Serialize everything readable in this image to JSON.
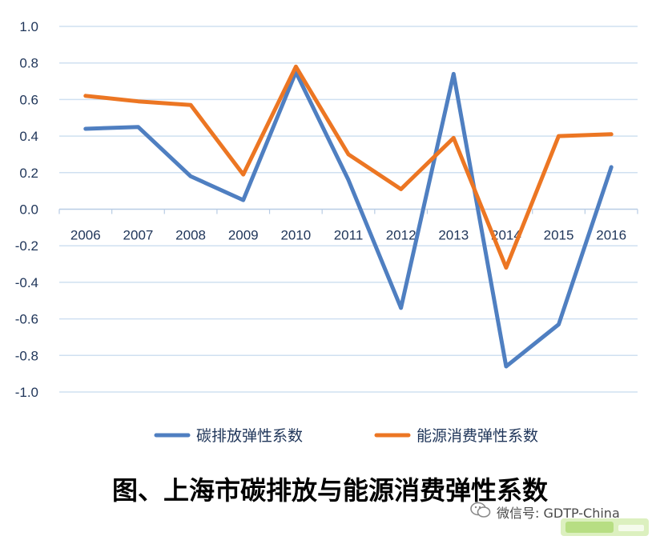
{
  "chart_data": {
    "type": "line",
    "categories": [
      "2006",
      "2007",
      "2008",
      "2009",
      "2010",
      "2011",
      "2012",
      "2013",
      "2014",
      "2015",
      "2016"
    ],
    "series": [
      {
        "name": "碳排放弹性系数",
        "color": "#4f7fc1",
        "values": [
          0.44,
          0.45,
          0.18,
          0.05,
          0.75,
          0.16,
          -0.54,
          0.74,
          -0.86,
          -0.63,
          0.23
        ]
      },
      {
        "name": "能源消费弹性系数",
        "color": "#ec7623",
        "values": [
          0.62,
          0.59,
          0.57,
          0.19,
          0.78,
          0.3,
          0.11,
          0.39,
          -0.32,
          0.4,
          0.41
        ]
      }
    ],
    "yticks": [
      "1.0",
      "0.8",
      "0.6",
      "0.4",
      "0.2",
      "0.0",
      "-0.2",
      "-0.4",
      "-0.6",
      "-0.8",
      "-1.0"
    ],
    "ylim": [
      -1.0,
      1.0
    ],
    "grid": true,
    "legend": "bottom"
  },
  "caption": "图、上海市碳排放与能源消费弹性系数",
  "watermark": {
    "wechat": "微信号: GDTP-China",
    "icon": "wechat-icon"
  }
}
